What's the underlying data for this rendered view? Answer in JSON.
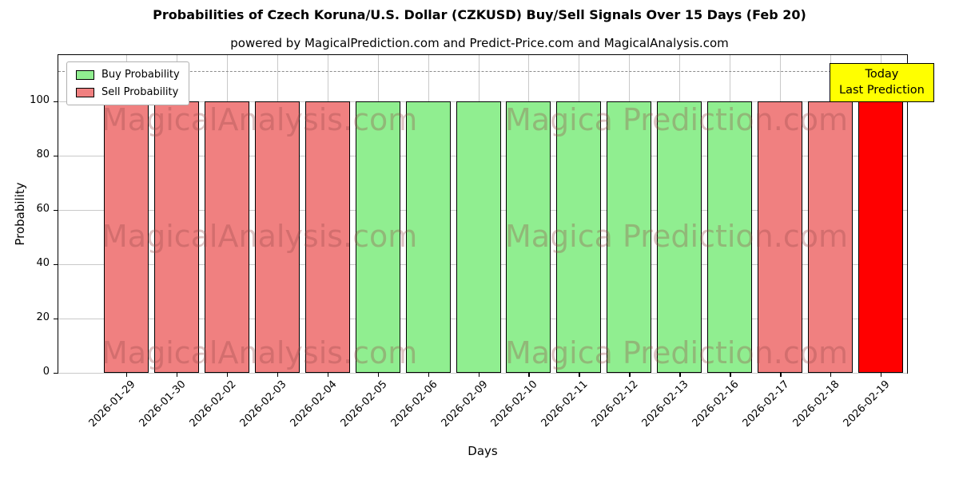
{
  "title": "Probabilities of Czech Koruna/U.S. Dollar (CZKUSD) Buy/Sell Signals Over 15 Days (Feb 20)",
  "subtitle": "powered by MagicalPrediction.com and Predict-Price.com and MagicalAnalysis.com",
  "legend": [
    {
      "label": "Buy Probability",
      "color": "#90ee90"
    },
    {
      "label": "Sell Probability",
      "color": "#f08080"
    }
  ],
  "annotation": {
    "line1": "Today",
    "line2": "Last Prediction",
    "bg": "#ffff00"
  },
  "watermark": {
    "left": "MagicalAnalysis.com",
    "right": "Magica Prediction.com"
  },
  "chart_data": {
    "type": "bar",
    "title": "Probabilities of Czech Koruna/U.S. Dollar (CZKUSD) Buy/Sell Signals Over 15 Days (Feb 20)",
    "xlabel": "Days",
    "ylabel": "Probability",
    "ylim": [
      0,
      117
    ],
    "yticks": [
      0,
      20,
      40,
      60,
      80,
      100
    ],
    "dashed_line_y": 111,
    "grid": true,
    "legend_position": "upper left",
    "colors": {
      "buy": "#90ee90",
      "sell": "#f08080",
      "today": "#ff0000"
    },
    "categories": [
      "2026-01-29",
      "2026-01-30",
      "2026-02-02",
      "2026-02-03",
      "2026-02-04",
      "2026-02-05",
      "2026-02-06",
      "2026-02-09",
      "2026-02-10",
      "2026-02-11",
      "2026-02-12",
      "2026-02-13",
      "2026-02-16",
      "2026-02-17",
      "2026-02-18",
      "2026-02-19"
    ],
    "values": [
      100,
      100,
      100,
      100,
      100,
      100,
      100,
      100,
      100,
      100,
      100,
      100,
      100,
      100,
      100,
      100
    ],
    "bar_types": [
      "sell",
      "sell",
      "sell",
      "sell",
      "sell",
      "buy",
      "buy",
      "buy",
      "buy",
      "buy",
      "buy",
      "buy",
      "buy",
      "sell",
      "sell",
      "today"
    ],
    "series": [
      {
        "name": "Buy Probability",
        "values": [
          null,
          null,
          null,
          null,
          null,
          100,
          100,
          100,
          100,
          100,
          100,
          100,
          100,
          null,
          null,
          null
        ]
      },
      {
        "name": "Sell Probability",
        "values": [
          100,
          100,
          100,
          100,
          100,
          null,
          null,
          null,
          null,
          null,
          null,
          null,
          null,
          100,
          100,
          null
        ]
      },
      {
        "name": "Today Last Prediction",
        "values": [
          null,
          null,
          null,
          null,
          null,
          null,
          null,
          null,
          null,
          null,
          null,
          null,
          null,
          null,
          null,
          100
        ]
      }
    ]
  }
}
